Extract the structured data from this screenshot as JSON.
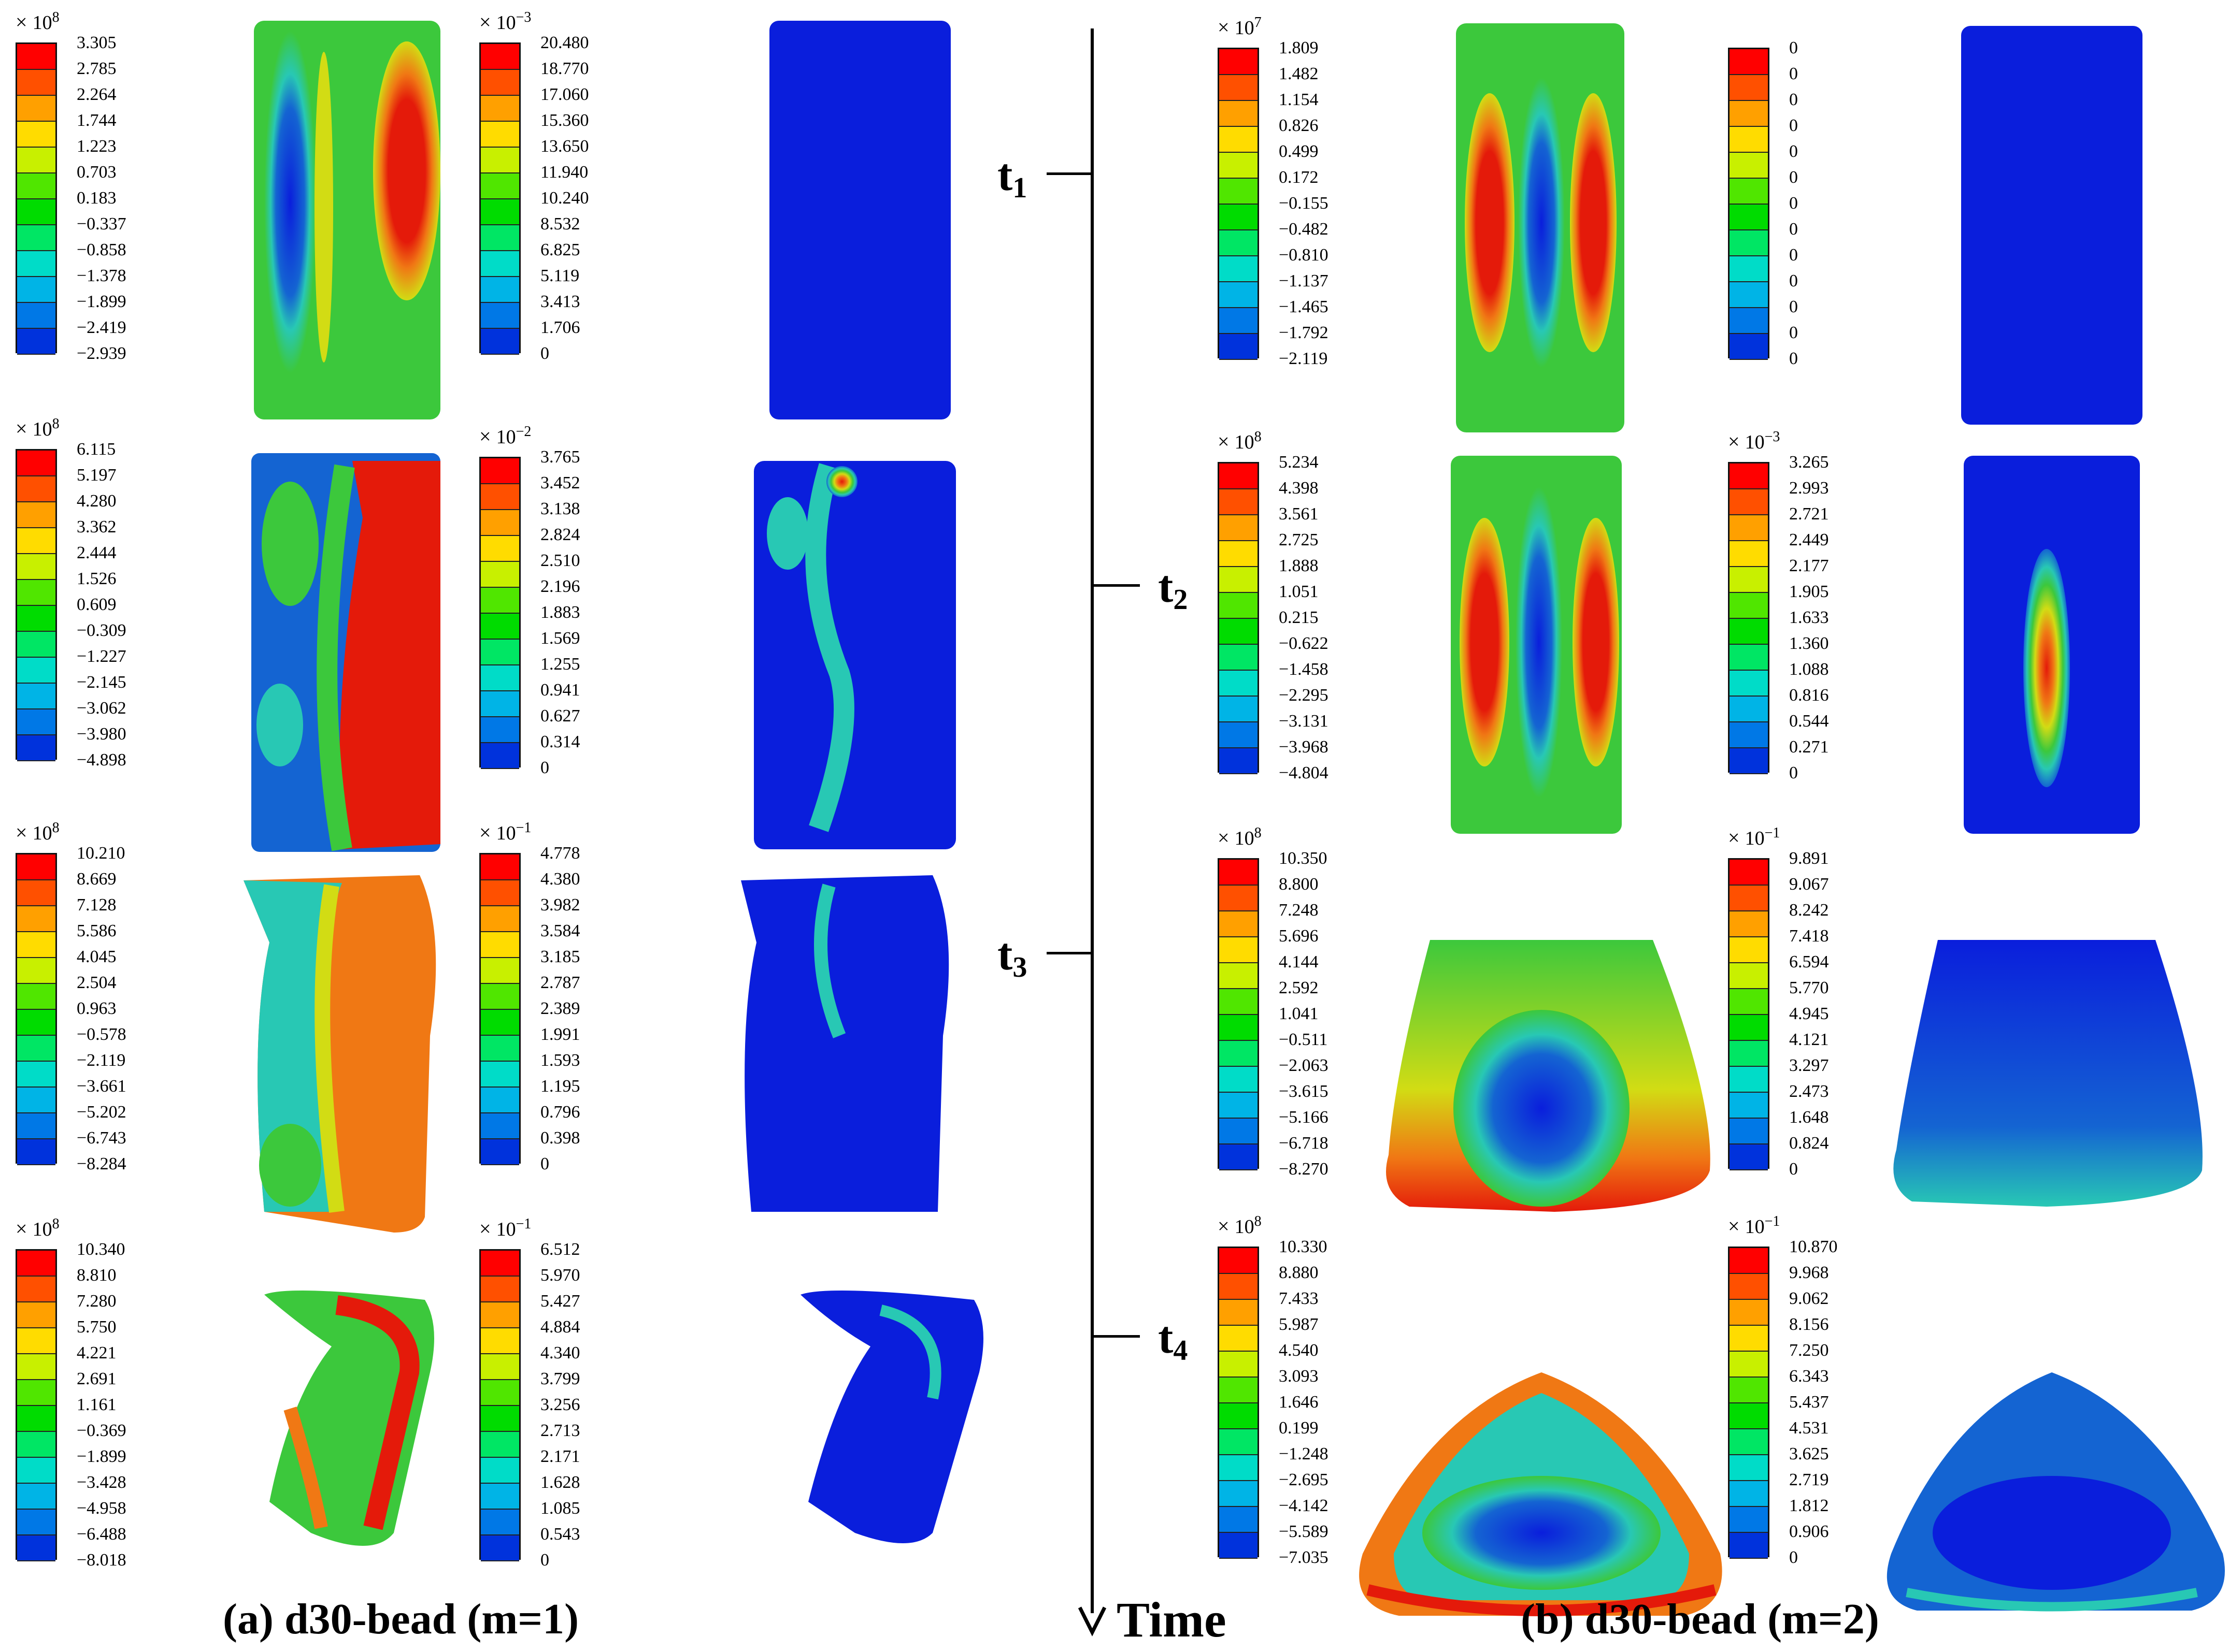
{
  "colors": [
    "#ff0000",
    "#ff5000",
    "#ffa000",
    "#ffdc00",
    "#c8f000",
    "#50e600",
    "#00dc00",
    "#00e664",
    "#00dcc8",
    "#00b4e6",
    "#0078e6",
    "#0032dc",
    "#0000ff"
  ],
  "field_colors": {
    "hot": "#e41a0a",
    "orange": "#f07814",
    "yellow": "#d2dc14",
    "green": "#3cc83c",
    "cyan": "#28c8b4",
    "blue": "#1464d2",
    "deep": "#0a1edc"
  },
  "time_axis": {
    "label": "Time",
    "ticks": [
      {
        "label": "t",
        "sub": "1"
      },
      {
        "label": "t",
        "sub": "2"
      },
      {
        "label": "t",
        "sub": "3"
      },
      {
        "label": "t",
        "sub": "4"
      }
    ]
  },
  "captions": {
    "a": "(a) d30-bead (m=1)",
    "b": "(b) d30-bead (m=2)"
  },
  "legends": {
    "a1s": {
      "mult": "10",
      "exp": "8",
      "ticks": [
        "3.305",
        "2.785",
        "2.264",
        "1.744",
        "1.223",
        "0.703",
        "0.183",
        "−0.337",
        "−0.858",
        "−1.378",
        "−1.899",
        "−2.419",
        "−2.939"
      ]
    },
    "a1e": {
      "mult": "10",
      "exp": "−3",
      "ticks": [
        "20.480",
        "18.770",
        "17.060",
        "15.360",
        "13.650",
        "11.940",
        "10.240",
        "8.532",
        "6.825",
        "5.119",
        "3.413",
        "1.706",
        "0"
      ]
    },
    "a2s": {
      "mult": "10",
      "exp": "8",
      "ticks": [
        "6.115",
        "5.197",
        "4.280",
        "3.362",
        "2.444",
        "1.526",
        "0.609",
        "−0.309",
        "−1.227",
        "−2.145",
        "−3.062",
        "−3.980",
        "−4.898"
      ]
    },
    "a2e": {
      "mult": "10",
      "exp": "−2",
      "ticks": [
        "3.765",
        "3.452",
        "3.138",
        "2.824",
        "2.510",
        "2.196",
        "1.883",
        "1.569",
        "1.255",
        "0.941",
        "0.627",
        "0.314",
        "0"
      ]
    },
    "a3s": {
      "mult": "10",
      "exp": "8",
      "ticks": [
        "10.210",
        "8.669",
        "7.128",
        "5.586",
        "4.045",
        "2.504",
        "0.963",
        "−0.578",
        "−2.119",
        "−3.661",
        "−5.202",
        "−6.743",
        "−8.284"
      ]
    },
    "a3e": {
      "mult": "10",
      "exp": "−1",
      "ticks": [
        "4.778",
        "4.380",
        "3.982",
        "3.584",
        "3.185",
        "2.787",
        "2.389",
        "1.991",
        "1.593",
        "1.195",
        "0.796",
        "0.398",
        "0"
      ]
    },
    "a4s": {
      "mult": "10",
      "exp": "8",
      "ticks": [
        "10.340",
        "8.810",
        "7.280",
        "5.750",
        "4.221",
        "2.691",
        "1.161",
        "−0.369",
        "−1.899",
        "−3.428",
        "−4.958",
        "−6.488",
        "−8.018"
      ]
    },
    "a4e": {
      "mult": "10",
      "exp": "−1",
      "ticks": [
        "6.512",
        "5.970",
        "5.427",
        "4.884",
        "4.340",
        "3.799",
        "3.256",
        "2.713",
        "2.171",
        "1.628",
        "1.085",
        "0.543",
        "0"
      ]
    },
    "b1s": {
      "mult": "10",
      "exp": "7",
      "ticks": [
        "1.809",
        "1.482",
        "1.154",
        "0.826",
        "0.499",
        "0.172",
        "−0.155",
        "−0.482",
        "−0.810",
        "−1.137",
        "−1.465",
        "−1.792",
        "−2.119"
      ]
    },
    "b1e": {
      "mult": "",
      "exp": "",
      "ticks": [
        "0",
        "0",
        "0",
        "0",
        "0",
        "0",
        "0",
        "0",
        "0",
        "0",
        "0",
        "0",
        "0"
      ]
    },
    "b2s": {
      "mult": "10",
      "exp": "8",
      "ticks": [
        "5.234",
        "4.398",
        "3.561",
        "2.725",
        "1.888",
        "1.051",
        "0.215",
        "−0.622",
        "−1.458",
        "−2.295",
        "−3.131",
        "−3.968",
        "−4.804"
      ]
    },
    "b2e": {
      "mult": "10",
      "exp": "−3",
      "ticks": [
        "3.265",
        "2.993",
        "2.721",
        "2.449",
        "2.177",
        "1.905",
        "1.633",
        "1.360",
        "1.088",
        "0.816",
        "0.544",
        "0.271",
        "0"
      ]
    },
    "b3s": {
      "mult": "10",
      "exp": "8",
      "ticks": [
        "10.350",
        "8.800",
        "7.248",
        "5.696",
        "4.144",
        "2.592",
        "1.041",
        "−0.511",
        "−2.063",
        "−3.615",
        "−5.166",
        "−6.718",
        "−8.270"
      ]
    },
    "b3e": {
      "mult": "10",
      "exp": "−1",
      "ticks": [
        "9.891",
        "9.067",
        "8.242",
        "7.418",
        "6.594",
        "5.770",
        "4.945",
        "4.121",
        "3.297",
        "2.473",
        "1.648",
        "0.824",
        "0"
      ]
    },
    "b4s": {
      "mult": "10",
      "exp": "8",
      "ticks": [
        "10.330",
        "8.880",
        "7.433",
        "5.987",
        "4.540",
        "3.093",
        "1.646",
        "0.199",
        "−1.248",
        "−2.695",
        "−4.142",
        "−5.589",
        "−7.035"
      ]
    },
    "b4e": {
      "mult": "10",
      "exp": "−1",
      "ticks": [
        "10.870",
        "9.968",
        "9.062",
        "8.156",
        "7.250",
        "6.343",
        "5.437",
        "4.531",
        "3.625",
        "2.719",
        "1.812",
        "0.906",
        "0"
      ]
    }
  }
}
